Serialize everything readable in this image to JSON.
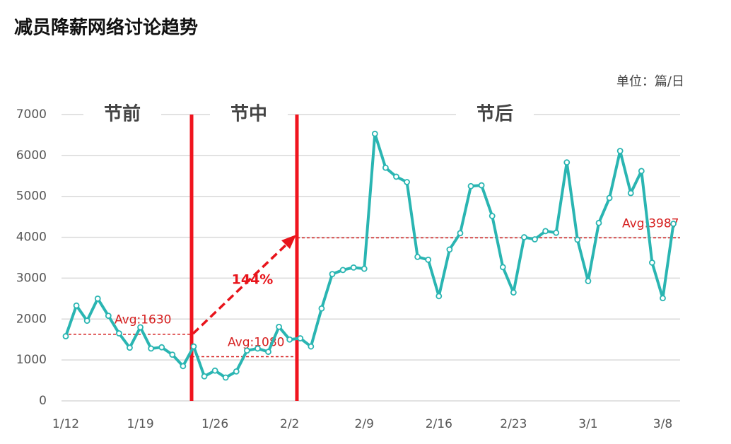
{
  "chart_data": {
    "type": "line",
    "title": "减员降薪网络讨论趋势",
    "unit": "单位：篇/日",
    "categories": [
      "1/12",
      null,
      null,
      null,
      null,
      null,
      null,
      "1/19",
      null,
      null,
      null,
      null,
      null,
      null,
      "1/26",
      null,
      null,
      null,
      null,
      null,
      null,
      "2/2",
      null,
      null,
      null,
      null,
      null,
      null,
      "2/9",
      null,
      null,
      null,
      null,
      null,
      null,
      "2/16",
      null,
      null,
      null,
      null,
      null,
      null,
      "2/23",
      null,
      null,
      null,
      null,
      null,
      null,
      "3/1",
      null,
      null,
      null,
      null,
      null,
      null,
      "3/8",
      null
    ],
    "series": [
      {
        "color": "#2ab5b2",
        "values": [
          1580,
          2330,
          1960,
          2500,
          2080,
          1650,
          1300,
          1800,
          1280,
          1310,
          1130,
          850,
          1330,
          600,
          740,
          570,
          720,
          1230,
          1280,
          1200,
          1810,
          1500,
          1530,
          1330,
          2260,
          3100,
          3200,
          3260,
          3230,
          6530,
          5700,
          5480,
          5350,
          3520,
          3450,
          2560,
          3700,
          4100,
          5250,
          5270,
          4520,
          3270,
          2650,
          4000,
          3950,
          4150,
          4110,
          5830,
          3940,
          2930,
          4350,
          4960,
          6110,
          5080,
          5620,
          3380,
          2510,
          4330
        ]
      }
    ],
    "ylim": [
      0,
      7000
    ],
    "yticks": [
      0,
      1000,
      2000,
      3000,
      4000,
      5000,
      6000,
      7000
    ],
    "grid": true,
    "phases": [
      "节前",
      "节中",
      "节后"
    ],
    "averages": [
      {
        "value": 1630,
        "label": "Avg:1630"
      },
      {
        "value": 1080,
        "label": "Avg:1080"
      },
      {
        "value": 3987,
        "label": "Avg:3987"
      }
    ],
    "growth": "144%"
  }
}
